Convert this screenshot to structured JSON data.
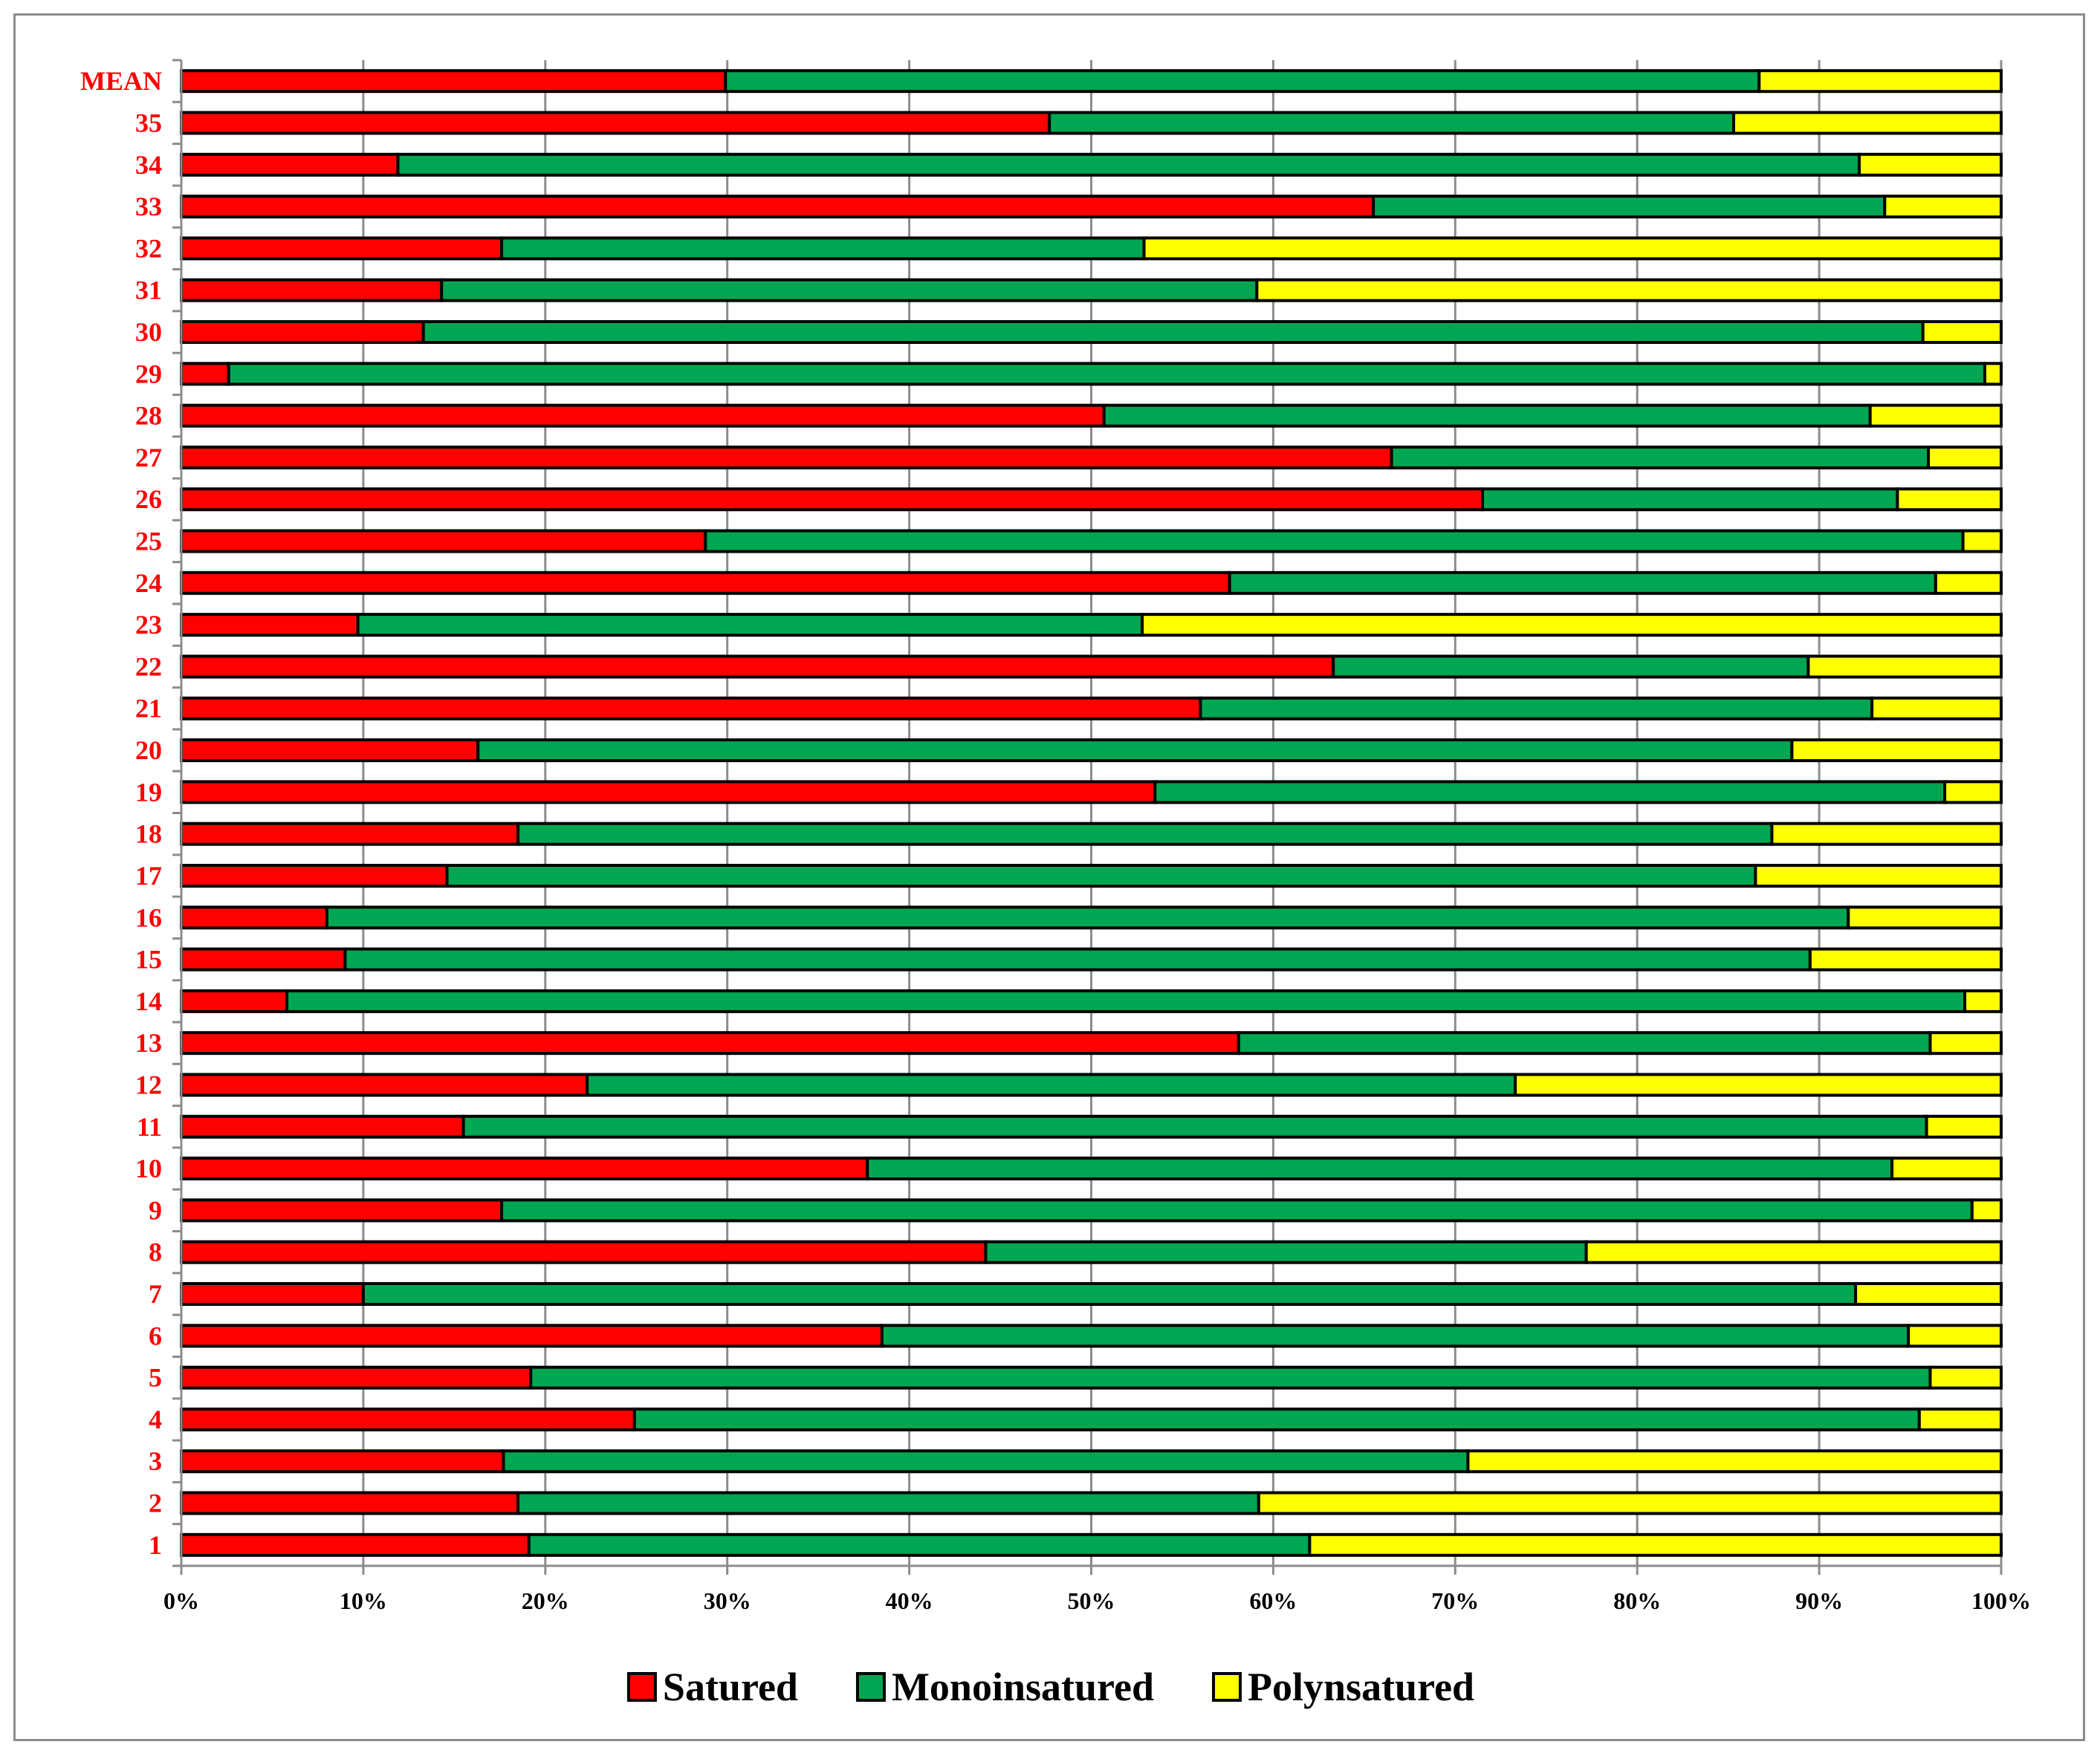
{
  "chart_data": {
    "type": "bar",
    "orientation": "horizontal",
    "stacked": "percent",
    "title": "",
    "xlabel": "",
    "ylabel": "",
    "xlim": [
      0,
      100
    ],
    "grid": true,
    "legend_position": "bottom",
    "x_ticks": [
      "0%",
      "10%",
      "20%",
      "30%",
      "40%",
      "50%",
      "60%",
      "70%",
      "80%",
      "90%",
      "100%"
    ],
    "categories": [
      "1",
      "2",
      "3",
      "4",
      "5",
      "6",
      "7",
      "8",
      "9",
      "10",
      "11",
      "12",
      "13",
      "14",
      "15",
      "16",
      "17",
      "18",
      "19",
      "20",
      "21",
      "22",
      "23",
      "24",
      "25",
      "26",
      "27",
      "28",
      "29",
      "30",
      "31",
      "32",
      "33",
      "34",
      "35",
      "MEAN"
    ],
    "series": [
      {
        "name": "Satured",
        "color": "#ff0000",
        "values": [
          19.1,
          18.5,
          17.7,
          24.9,
          19.2,
          38.5,
          10,
          44.2,
          17.6,
          37.7,
          15.5,
          22.3,
          58.1,
          5.8,
          9,
          8,
          14.6,
          18.5,
          53.5,
          16.3,
          56,
          63.3,
          9.7,
          57.6,
          28.8,
          71.5,
          66.5,
          50.7,
          2.6,
          13.3,
          14.3,
          17.6,
          65.5,
          11.9,
          47.7,
          29.9
        ]
      },
      {
        "name": "Monoinsatured",
        "color": "#00a651",
        "values": [
          42.9,
          40.7,
          53,
          70.6,
          76.9,
          56.4,
          82,
          33,
          80.8,
          56.3,
          80.4,
          51,
          38,
          92.2,
          80.5,
          83.6,
          71.9,
          68.9,
          43.4,
          72.2,
          36.9,
          26.1,
          43.1,
          38.8,
          69.1,
          22.8,
          29.5,
          42.1,
          96.5,
          82.4,
          44.8,
          35.3,
          28.1,
          80.3,
          37.6,
          56.8
        ]
      },
      {
        "name": "Polynsatured",
        "color": "#ffff00",
        "values": [
          38,
          40.8,
          29.3,
          4.5,
          3.9,
          5.1,
          8,
          22.8,
          1.6,
          6,
          4.1,
          26.7,
          3.9,
          2,
          10.5,
          8.4,
          13.5,
          12.6,
          3.1,
          11.5,
          7.1,
          10.6,
          47.2,
          3.6,
          2.1,
          5.7,
          4,
          7.2,
          0.9,
          4.3,
          40.9,
          47.1,
          6.4,
          7.8,
          14.7,
          13.3
        ]
      }
    ]
  }
}
